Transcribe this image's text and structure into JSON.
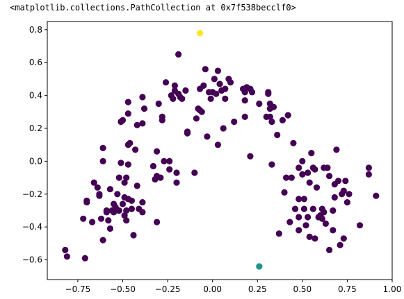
{
  "output_text": "<matplotlib.collections.PathCollection at 0x7f538becclf0>",
  "chart_data": {
    "type": "scatter",
    "title": "",
    "xlabel": "",
    "ylabel": "",
    "xlim": [
      -0.92,
      1.0
    ],
    "ylim": [
      -0.72,
      0.85
    ],
    "xticks": [
      -0.75,
      -0.5,
      -0.25,
      0.0,
      0.25,
      0.5,
      0.75,
      1.0
    ],
    "xtick_labels": [
      "−0.75",
      "−0.50",
      "−0.25",
      "0.00",
      "0.25",
      "0.50",
      "0.75",
      "1.00"
    ],
    "yticks": [
      -0.6,
      -0.4,
      -0.2,
      0.0,
      0.2,
      0.4,
      0.6,
      0.8
    ],
    "ytick_labels": [
      "−0.6",
      "−0.4",
      "−0.2",
      "0.0",
      "0.2",
      "0.4",
      "0.6",
      "0.8"
    ],
    "grid": false,
    "colors": {
      "cluster_0": "#440154",
      "cluster_1": "#21918c",
      "cluster_2": "#fde725"
    },
    "series": [
      {
        "color": "#440154",
        "points": [
          [
            -0.82,
            -0.54
          ],
          [
            -0.81,
            -0.58
          ],
          [
            -0.72,
            -0.35
          ],
          [
            -0.71,
            -0.59
          ],
          [
            -0.7,
            -0.24
          ],
          [
            -0.7,
            -0.25
          ],
          [
            -0.67,
            -0.37
          ],
          [
            -0.66,
            -0.13
          ],
          [
            -0.64,
            -0.16
          ],
          [
            -0.63,
            -0.2
          ],
          [
            -0.63,
            -0.21
          ],
          [
            -0.62,
            -0.35
          ],
          [
            -0.61,
            -0.48
          ],
          [
            -0.61,
            0.08
          ],
          [
            -0.61,
            0.0
          ],
          [
            -0.59,
            -0.3
          ],
          [
            -0.59,
            -0.31
          ],
          [
            -0.58,
            -0.36
          ],
          [
            -0.57,
            -0.41
          ],
          [
            -0.57,
            -0.17
          ],
          [
            -0.56,
            -0.3
          ],
          [
            -0.55,
            -0.26
          ],
          [
            -0.55,
            -0.31
          ],
          [
            -0.54,
            -0.28
          ],
          [
            -0.54,
            -0.3
          ],
          [
            -0.53,
            -0.2
          ],
          [
            -0.52,
            -0.1
          ],
          [
            -0.52,
            -0.3
          ],
          [
            -0.51,
            0.24
          ],
          [
            -0.51,
            -0.01
          ],
          [
            -0.5,
            -0.26
          ],
          [
            -0.5,
            0.25
          ],
          [
            -0.49,
            -0.13
          ],
          [
            -0.49,
            -0.33
          ],
          [
            -0.49,
            -0.22
          ],
          [
            -0.48,
            -0.1
          ],
          [
            -0.48,
            -0.3
          ],
          [
            -0.48,
            -0.36
          ],
          [
            -0.47,
            0.36
          ],
          [
            -0.47,
            0.29
          ],
          [
            -0.47,
            -0.02
          ],
          [
            -0.47,
            0.1
          ],
          [
            -0.47,
            -0.23
          ],
          [
            -0.46,
            0.11
          ],
          [
            -0.45,
            -0.29
          ],
          [
            -0.45,
            -0.24
          ],
          [
            -0.44,
            -0.45
          ],
          [
            -0.43,
            0.07
          ],
          [
            -0.42,
            -0.15
          ],
          [
            -0.42,
            0.22
          ],
          [
            -0.41,
            -0.29
          ],
          [
            -0.39,
            0.39
          ],
          [
            -0.39,
            -0.31
          ],
          [
            -0.39,
            0.23
          ],
          [
            -0.39,
            -0.25
          ],
          [
            -0.38,
            0.32
          ],
          [
            -0.33,
            -0.03
          ],
          [
            -0.32,
            -0.11
          ],
          [
            -0.31,
            0.06
          ],
          [
            -0.31,
            -0.09
          ],
          [
            -0.31,
            -0.37
          ],
          [
            -0.3,
            0.35
          ],
          [
            -0.29,
            -0.1
          ],
          [
            -0.28,
            0.25
          ],
          [
            -0.28,
            0.27
          ],
          [
            -0.27,
            0.0
          ],
          [
            -0.26,
            0.48
          ],
          [
            -0.24,
            -0.05
          ],
          [
            -0.24,
            0.0
          ],
          [
            -0.23,
            0.4
          ],
          [
            -0.22,
            0.38
          ],
          [
            -0.21,
            0.46
          ],
          [
            -0.21,
            0.43
          ],
          [
            -0.2,
            -0.07
          ],
          [
            -0.2,
            -0.13
          ],
          [
            -0.19,
            0.41
          ],
          [
            -0.19,
            0.65
          ],
          [
            -0.18,
            0.39
          ],
          [
            -0.17,
            0.38
          ],
          [
            -0.15,
            0.43
          ],
          [
            -0.14,
            0.18
          ],
          [
            -0.14,
            0.17
          ],
          [
            -0.1,
            -0.07
          ],
          [
            -0.09,
            0.26
          ],
          [
            -0.08,
            0.32
          ],
          [
            -0.07,
            0.31
          ],
          [
            -0.07,
            0.44
          ],
          [
            -0.06,
            0.3
          ],
          [
            -0.05,
            0.46
          ],
          [
            -0.04,
            0.56
          ],
          [
            -0.03,
            0.15
          ],
          [
            -0.02,
            0.42
          ],
          [
            -0.01,
            0.38
          ],
          [
            0.0,
            0.42
          ],
          [
            0.01,
            0.5
          ],
          [
            0.02,
            0.41
          ],
          [
            0.03,
            0.55
          ],
          [
            0.03,
            0.1
          ],
          [
            0.04,
            0.47
          ],
          [
            0.05,
            0.43
          ],
          [
            0.06,
            0.2
          ],
          [
            0.07,
            0.38
          ],
          [
            0.07,
            0.44
          ],
          [
            0.09,
            0.5
          ],
          [
            0.1,
            0.48
          ],
          [
            0.12,
            0.24
          ],
          [
            0.17,
            0.44
          ],
          [
            0.18,
            0.42
          ],
          [
            0.18,
            0.37
          ],
          [
            0.18,
            0.27
          ],
          [
            0.19,
            0.45
          ],
          [
            0.21,
            0.03
          ],
          [
            0.21,
            0.44
          ],
          [
            0.22,
            0.42
          ],
          [
            0.26,
            0.35
          ],
          [
            0.3,
            0.27
          ],
          [
            0.31,
            0.42
          ],
          [
            0.31,
            0.41
          ],
          [
            0.32,
            0.32
          ],
          [
            0.32,
            0.27
          ],
          [
            0.32,
            0.35
          ],
          [
            0.33,
            -0.02
          ],
          [
            0.33,
            0.24
          ],
          [
            0.34,
            0.33
          ],
          [
            0.36,
            0.16
          ],
          [
            0.37,
            -0.44
          ],
          [
            0.39,
            0.25
          ],
          [
            0.4,
            -0.19
          ],
          [
            0.41,
            -0.1
          ],
          [
            0.42,
            0.28
          ],
          [
            0.43,
            -0.37
          ],
          [
            0.44,
            -0.1
          ],
          [
            0.45,
            0.11
          ],
          [
            0.46,
            -0.29
          ],
          [
            0.48,
            -0.42
          ],
          [
            0.48,
            -0.34
          ],
          [
            0.48,
            -0.04
          ],
          [
            0.48,
            -0.23
          ],
          [
            0.5,
            0.0
          ],
          [
            0.5,
            -0.08
          ],
          [
            0.51,
            -0.29
          ],
          [
            0.51,
            -0.23
          ],
          [
            0.52,
            -0.39
          ],
          [
            0.53,
            -0.34
          ],
          [
            0.53,
            -0.07
          ],
          [
            0.54,
            -0.13
          ],
          [
            0.54,
            -0.46
          ],
          [
            0.55,
            0.05
          ],
          [
            0.56,
            -0.29
          ],
          [
            0.56,
            -0.04
          ],
          [
            0.57,
            -0.05
          ],
          [
            0.57,
            -0.47
          ],
          [
            0.58,
            -0.16
          ],
          [
            0.59,
            -0.34
          ],
          [
            0.6,
            -0.33
          ],
          [
            0.6,
            -0.33
          ],
          [
            0.61,
            -0.29
          ],
          [
            0.61,
            -0.35
          ],
          [
            0.62,
            -0.04
          ],
          [
            0.62,
            -0.31
          ],
          [
            0.63,
            -0.38
          ],
          [
            0.64,
            -0.04
          ],
          [
            0.65,
            -0.09
          ],
          [
            0.65,
            -0.54
          ],
          [
            0.67,
            -0.42
          ],
          [
            0.67,
            -0.3
          ],
          [
            0.68,
            -0.14
          ],
          [
            0.68,
            -0.22
          ],
          [
            0.69,
            0.07
          ],
          [
            0.7,
            -0.12
          ],
          [
            0.71,
            -0.51
          ],
          [
            0.72,
            -0.2
          ],
          [
            0.73,
            -0.47
          ],
          [
            0.74,
            -0.12
          ],
          [
            0.76,
            -0.2
          ],
          [
            0.82,
            -0.39
          ],
          [
            0.87,
            -0.08
          ],
          [
            0.87,
            -0.04
          ],
          [
            0.91,
            -0.21
          ],
          [
            0.75,
            -0.25
          ],
          [
            0.73,
            -0.18
          ]
        ]
      },
      {
        "color": "#21918c",
        "points": [
          [
            0.26,
            -0.64
          ]
        ]
      },
      {
        "color": "#fde725",
        "points": [
          [
            -0.07,
            0.78
          ]
        ]
      }
    ]
  }
}
